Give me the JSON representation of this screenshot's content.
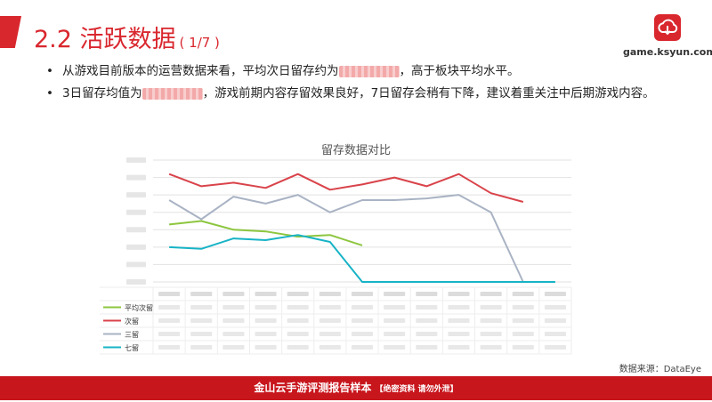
{
  "header": {
    "title": "2.2 活跃数据",
    "page_indicator": "( 1/7 )"
  },
  "logo": {
    "icon": "cloud-download-icon",
    "text": "game.ksyun.com"
  },
  "bullets": [
    {
      "text_before": "从游戏目前版本的运营数据来看，平均次日留存约为",
      "text_after": "，高于板块平均水平。"
    },
    {
      "text_before": "3日留存均值为",
      "text_after": "，游戏前期内容存留效果良好，7日留存会稍有下降，建议着重关注中后期游戏内容。"
    }
  ],
  "chart_data": {
    "type": "line",
    "title": "留存数据对比",
    "ylim": [
      0,
      70
    ],
    "grid": true,
    "legend_position": "left of data table",
    "categories_count": 13,
    "series": [
      {
        "name": "平均次留",
        "color": "#8dc63f",
        "values": [
          33,
          35,
          30,
          29,
          26,
          27,
          21,
          null,
          null,
          null,
          null,
          null,
          null
        ]
      },
      {
        "name": "次留",
        "color": "#d9434a",
        "values": [
          62,
          55,
          57,
          54,
          62,
          53,
          56,
          60,
          55,
          62,
          51,
          46,
          null
        ]
      },
      {
        "name": "三留",
        "color": "#a9b3c4",
        "values": [
          47,
          36,
          49,
          45,
          50,
          40,
          47,
          47,
          48,
          50,
          40,
          0,
          null
        ]
      },
      {
        "name": "七留",
        "color": "#17b3c6",
        "values": [
          20,
          19,
          25,
          24,
          27,
          23,
          0,
          0,
          0,
          0,
          0,
          0,
          0
        ]
      }
    ]
  },
  "source": "数据来源：DataEye",
  "footer": {
    "text": "金山云手游评测报告样本",
    "note": "【绝密资料 请勿外泄】"
  },
  "colors": {
    "brand_red": "#d9272e",
    "footer_red": "#c8161d"
  }
}
